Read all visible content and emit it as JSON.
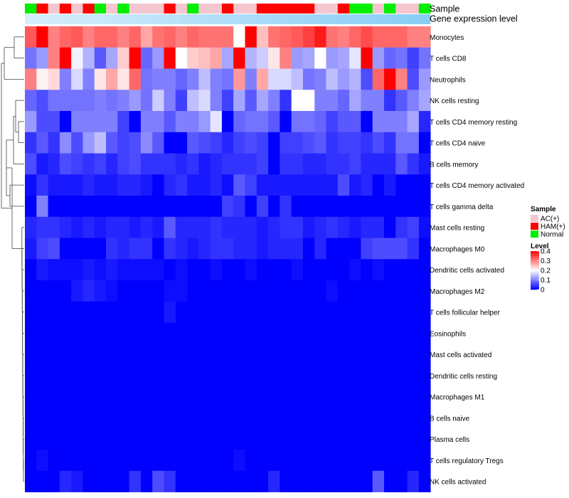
{
  "chart_data": {
    "type": "heatmap",
    "title": "",
    "annotation_labels": {
      "sample": "Sample",
      "gene": "Gene expression level"
    },
    "legend": {
      "sample_title": "Sample",
      "sample_entries": [
        {
          "label": "AC(+)",
          "color": "#f4c6cf"
        },
        {
          "label": "HAM(+)",
          "color": "#ff0000"
        },
        {
          "label": "Normal",
          "color": "#00ee00"
        }
      ],
      "level_title": "Level",
      "level_ticks": [
        "0.4",
        "0.3",
        "0.2",
        "0.1",
        "0"
      ],
      "level_range": [
        0,
        0.4
      ],
      "colors": {
        "low": "#0000ff",
        "mid": "#ffffff",
        "high": "#ff0000"
      }
    },
    "rows": [
      "Monocytes",
      "T cells CD8",
      "Neutrophils",
      "NK cells resting",
      "T cells CD4 memory resting",
      "T cells CD4 naive",
      "B cells memory",
      "T cells CD4 memory activated",
      "T cells gamma delta",
      "Mast cells resting",
      "Macrophages M0",
      "Dendritic cells activated",
      "Macrophages M2",
      "T cells follicular helper",
      "Eosinophils",
      "Mast cells activated",
      "Dendritic cells resting",
      "Macrophages M1",
      "B cells naive",
      "Plasma cells",
      "T cells regulatory  Tregs",
      "NK cells activated"
    ],
    "sample_groups": [
      "Normal",
      "HAM(+)",
      "AC(+)",
      "HAM(+)",
      "AC(+)",
      "HAM(+)",
      "Normal",
      "AC(+)",
      "Normal",
      "AC(+)",
      "AC(+)",
      "AC(+)",
      "HAM(+)",
      "AC(+)",
      "Normal",
      "AC(+)",
      "AC(+)",
      "HAM(+)",
      "AC(+)",
      "AC(+)",
      "HAM(+)",
      "HAM(+)",
      "HAM(+)",
      "HAM(+)",
      "HAM(+)",
      "AC(+)",
      "AC(+)",
      "HAM(+)",
      "Normal",
      "Normal",
      "AC(+)",
      "Normal",
      "AC(+)",
      "AC(+)",
      "Normal"
    ],
    "gene_expression_color": "#87cdf5",
    "values": [
      [
        0.33,
        0.4,
        0.3,
        0.32,
        0.33,
        0.3,
        0.32,
        0.32,
        0.3,
        0.32,
        0.27,
        0.31,
        0.32,
        0.3,
        0.32,
        0.31,
        0.31,
        0.31,
        0.2,
        0.4,
        0.25,
        0.31,
        0.32,
        0.33,
        0.35,
        0.38,
        0.31,
        0.3,
        0.32,
        0.34,
        0.32,
        0.32,
        0.32,
        0.3,
        0.3
      ],
      [
        0.09,
        0.12,
        0.3,
        0.4,
        0.19,
        0.14,
        0.07,
        0.13,
        0.24,
        0.4,
        0.08,
        0.12,
        0.4,
        0.2,
        0.24,
        0.25,
        0.27,
        0.13,
        0.4,
        0.14,
        0.16,
        0.22,
        0.3,
        0.12,
        0.13,
        0.2,
        0.12,
        0.13,
        0.18,
        0.4,
        0.12,
        0.08,
        0.09,
        0.05,
        0.09
      ],
      [
        0.3,
        0.21,
        0.23,
        0.1,
        0.17,
        0.1,
        0.22,
        0.27,
        0.22,
        0.32,
        0.09,
        0.1,
        0.1,
        0.08,
        0.1,
        0.15,
        0.1,
        0.09,
        0.28,
        0.1,
        0.27,
        0.17,
        0.17,
        0.15,
        0.09,
        0.1,
        0.15,
        0.12,
        0.14,
        0.06,
        0.32,
        0.4,
        0.3,
        0.06,
        0.12
      ],
      [
        0.08,
        0.06,
        0.09,
        0.09,
        0.09,
        0.09,
        0.1,
        0.09,
        0.1,
        0.12,
        0.09,
        0.16,
        0.1,
        0.05,
        0.15,
        0.17,
        0.1,
        0.05,
        0.13,
        0.07,
        0.13,
        0.1,
        0.04,
        0.2,
        0.2,
        0.1,
        0.1,
        0.08,
        0.13,
        0.1,
        0.1,
        0.04,
        0.07,
        0.1,
        0.13
      ],
      [
        0.12,
        0.06,
        0.06,
        0.0,
        0.1,
        0.1,
        0.1,
        0.1,
        0.05,
        0.0,
        0.1,
        0.1,
        0.07,
        0.1,
        0.1,
        0.12,
        0.18,
        0.0,
        0.08,
        0.09,
        0.09,
        0.07,
        0.0,
        0.09,
        0.09,
        0.08,
        0.05,
        0.07,
        0.07,
        0.0,
        0.1,
        0.1,
        0.1,
        0.13,
        0.03
      ],
      [
        0.04,
        0.07,
        0.04,
        0.11,
        0.06,
        0.12,
        0.15,
        0.07,
        0.05,
        0.06,
        0.11,
        0.07,
        0.0,
        0.0,
        0.07,
        0.06,
        0.05,
        0.03,
        0.05,
        0.06,
        0.05,
        0.0,
        0.05,
        0.05,
        0.06,
        0.07,
        0.04,
        0.05,
        0.05,
        0.04,
        0.06,
        0.04,
        0.09,
        0.09,
        0.0
      ],
      [
        0.06,
        0.02,
        0.03,
        0.06,
        0.05,
        0.04,
        0.05,
        0.03,
        0.05,
        0.06,
        0.04,
        0.04,
        0.04,
        0.03,
        0.04,
        0.02,
        0.03,
        0.04,
        0.04,
        0.04,
        0.05,
        0.0,
        0.04,
        0.04,
        0.03,
        0.03,
        0.04,
        0.04,
        0.05,
        0.03,
        0.03,
        0.03,
        0.07,
        0.04,
        0.02
      ],
      [
        0.01,
        0.04,
        0.02,
        0.02,
        0.02,
        0.03,
        0.02,
        0.02,
        0.03,
        0.03,
        0.02,
        0.0,
        0.03,
        0.04,
        0.02,
        0.02,
        0.03,
        0.01,
        0.07,
        0.05,
        0.02,
        0.02,
        0.02,
        0.02,
        0.02,
        0.02,
        0.02,
        0.06,
        0.02,
        0.03,
        0.0,
        0.02,
        0.0,
        0.0,
        0.0
      ],
      [
        0.0,
        0.1,
        0.0,
        0.0,
        0.0,
        0.0,
        0.0,
        0.0,
        0.0,
        0.0,
        0.0,
        0.0,
        0.0,
        0.0,
        0.0,
        0.0,
        0.0,
        0.05,
        0.04,
        0.0,
        0.05,
        0.0,
        0.04,
        0.0,
        0.0,
        0.0,
        0.0,
        0.0,
        0.0,
        0.0,
        0.0,
        0.0,
        0.0,
        0.0,
        0.0
      ],
      [
        0.03,
        0.04,
        0.04,
        0.03,
        0.02,
        0.03,
        0.02,
        0.03,
        0.03,
        0.02,
        0.03,
        0.02,
        0.07,
        0.03,
        0.03,
        0.03,
        0.04,
        0.03,
        0.03,
        0.03,
        0.02,
        0.03,
        0.04,
        0.04,
        0.02,
        0.03,
        0.04,
        0.03,
        0.02,
        0.03,
        0.03,
        0.0,
        0.04,
        0.05,
        0.01
      ],
      [
        0.02,
        0.05,
        0.06,
        0.0,
        0.0,
        0.0,
        0.0,
        0.04,
        0.03,
        0.04,
        0.04,
        0.0,
        0.04,
        0.03,
        0.02,
        0.03,
        0.04,
        0.04,
        0.03,
        0.03,
        0.02,
        0.03,
        0.03,
        0.03,
        0.0,
        0.03,
        0.0,
        0.0,
        0.0,
        0.05,
        0.06,
        0.06,
        0.06,
        0.04,
        0.0
      ],
      [
        0.0,
        0.02,
        0.01,
        0.01,
        0.01,
        0.02,
        0.01,
        0.02,
        0.01,
        0.01,
        0.01,
        0.01,
        0.0,
        0.01,
        0.0,
        0.0,
        0.01,
        0.0,
        0.0,
        0.01,
        0.0,
        0.0,
        0.0,
        0.01,
        0.0,
        0.0,
        0.0,
        0.0,
        0.01,
        0.0,
        0.01,
        0.0,
        0.0,
        0.0,
        0.0
      ],
      [
        0.0,
        0.0,
        0.0,
        0.0,
        0.02,
        0.03,
        0.02,
        0.01,
        0.0,
        0.0,
        0.0,
        0.0,
        0.01,
        0.01,
        0.0,
        0.0,
        0.0,
        0.0,
        0.0,
        0.0,
        0.0,
        0.0,
        0.0,
        0.0,
        0.0,
        0.0,
        0.01,
        0.0,
        0.0,
        0.0,
        0.0,
        0.0,
        0.0,
        0.0,
        0.0
      ],
      [
        0.0,
        0.0,
        0.0,
        0.0,
        0.0,
        0.0,
        0.0,
        0.0,
        0.0,
        0.0,
        0.0,
        0.0,
        0.02,
        0.0,
        0.0,
        0.0,
        0.0,
        0.0,
        0.0,
        0.0,
        0.0,
        0.0,
        0.0,
        0.0,
        0.0,
        0.0,
        0.0,
        0.0,
        0.0,
        0.0,
        0.0,
        0.0,
        0.0,
        0.0,
        0.0
      ],
      [
        0.0,
        0.0,
        0.0,
        0.0,
        0.0,
        0.0,
        0.0,
        0.0,
        0.0,
        0.0,
        0.0,
        0.0,
        0.0,
        0.0,
        0.0,
        0.0,
        0.0,
        0.0,
        0.0,
        0.0,
        0.0,
        0.0,
        0.0,
        0.0,
        0.0,
        0.0,
        0.0,
        0.0,
        0.0,
        0.0,
        0.0,
        0.0,
        0.0,
        0.0,
        0.0
      ],
      [
        0.0,
        0.0,
        0.0,
        0.0,
        0.0,
        0.0,
        0.0,
        0.0,
        0.0,
        0.0,
        0.0,
        0.0,
        0.0,
        0.0,
        0.0,
        0.0,
        0.0,
        0.0,
        0.0,
        0.0,
        0.0,
        0.0,
        0.0,
        0.0,
        0.0,
        0.0,
        0.0,
        0.0,
        0.0,
        0.0,
        0.0,
        0.0,
        0.0,
        0.0,
        0.0
      ],
      [
        0.0,
        0.0,
        0.0,
        0.0,
        0.0,
        0.0,
        0.0,
        0.0,
        0.0,
        0.0,
        0.0,
        0.0,
        0.0,
        0.0,
        0.0,
        0.0,
        0.0,
        0.0,
        0.0,
        0.0,
        0.0,
        0.0,
        0.0,
        0.0,
        0.0,
        0.0,
        0.0,
        0.0,
        0.0,
        0.0,
        0.0,
        0.0,
        0.0,
        0.0,
        0.0
      ],
      [
        0.0,
        0.0,
        0.0,
        0.0,
        0.0,
        0.0,
        0.0,
        0.0,
        0.0,
        0.0,
        0.0,
        0.0,
        0.0,
        0.0,
        0.0,
        0.0,
        0.0,
        0.0,
        0.0,
        0.0,
        0.0,
        0.0,
        0.0,
        0.0,
        0.0,
        0.0,
        0.0,
        0.0,
        0.0,
        0.0,
        0.0,
        0.0,
        0.0,
        0.0,
        0.0
      ],
      [
        0.0,
        0.0,
        0.0,
        0.0,
        0.0,
        0.0,
        0.0,
        0.0,
        0.0,
        0.0,
        0.0,
        0.0,
        0.0,
        0.0,
        0.0,
        0.0,
        0.0,
        0.0,
        0.0,
        0.0,
        0.0,
        0.0,
        0.0,
        0.0,
        0.0,
        0.0,
        0.0,
        0.0,
        0.0,
        0.0,
        0.0,
        0.0,
        0.0,
        0.0,
        0.0
      ],
      [
        0.0,
        0.0,
        0.0,
        0.0,
        0.0,
        0.0,
        0.0,
        0.0,
        0.0,
        0.0,
        0.0,
        0.0,
        0.0,
        0.0,
        0.0,
        0.0,
        0.0,
        0.0,
        0.0,
        0.0,
        0.0,
        0.0,
        0.0,
        0.0,
        0.0,
        0.0,
        0.0,
        0.0,
        0.0,
        0.0,
        0.0,
        0.0,
        0.0,
        0.0,
        0.0
      ],
      [
        0.0,
        0.01,
        0.0,
        0.0,
        0.0,
        0.0,
        0.0,
        0.0,
        0.0,
        0.0,
        0.0,
        0.0,
        0.0,
        0.0,
        0.0,
        0.0,
        0.0,
        0.0,
        0.01,
        0.0,
        0.0,
        0.0,
        0.0,
        0.0,
        0.0,
        0.0,
        0.0,
        0.0,
        0.0,
        0.0,
        0.0,
        0.0,
        0.0,
        0.0,
        0.0
      ],
      [
        0.0,
        0.0,
        0.0,
        0.03,
        0.02,
        0.0,
        0.0,
        0.0,
        0.0,
        0.04,
        0.0,
        0.06,
        0.04,
        0.0,
        0.0,
        0.0,
        0.0,
        0.0,
        0.0,
        0.0,
        0.0,
        0.03,
        0.0,
        0.0,
        0.0,
        0.0,
        0.0,
        0.0,
        0.0,
        0.0,
        0.07,
        0.0,
        0.0,
        0.03,
        0.0
      ]
    ]
  }
}
